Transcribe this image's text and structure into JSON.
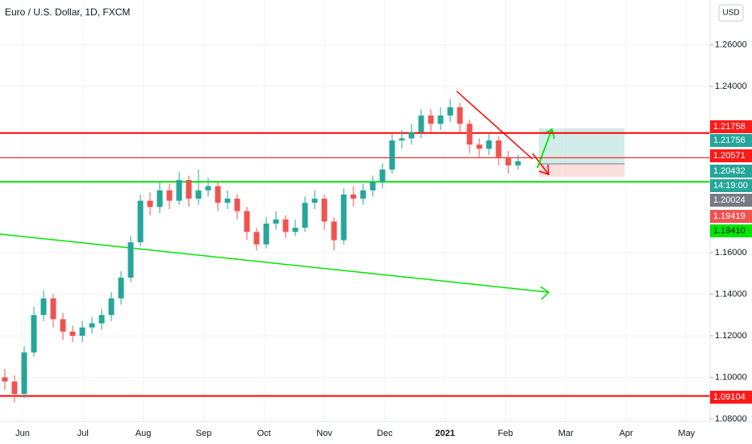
{
  "chart_data": {
    "type": "candlestick",
    "title": "Euro / U.S. Dollar, 1D, FXCM",
    "currency": "USD",
    "up_color": "#26a69a",
    "down_color": "#ef5350",
    "ylim": [
      1.0788,
      1.2816
    ],
    "yticks": [
      {
        "value": 1.26,
        "label": "1.26000"
      },
      {
        "value": 1.24,
        "label": "1.24000"
      },
      {
        "value": 1.16,
        "label": "1.16000"
      },
      {
        "value": 1.14,
        "label": "1.14000"
      },
      {
        "value": 1.12,
        "label": "1.12000"
      },
      {
        "value": 1.1,
        "label": "1.10000"
      },
      {
        "value": 1.08,
        "label": "1.08000"
      }
    ],
    "months": [
      "Jun",
      "Jul",
      "Aug",
      "Sep",
      "Oct",
      "Nov",
      "Dec",
      "2021",
      "Feb",
      "Mar",
      "Apr",
      "May"
    ],
    "candles": [
      [
        1.1,
        1.104,
        1.094,
        1.098
      ],
      [
        1.098,
        1.101,
        1.088,
        1.092
      ],
      [
        1.092,
        1.115,
        1.09,
        1.112
      ],
      [
        1.112,
        1.134,
        1.11,
        1.13
      ],
      [
        1.13,
        1.142,
        1.127,
        1.138
      ],
      [
        1.138,
        1.14,
        1.124,
        1.128
      ],
      [
        1.128,
        1.131,
        1.118,
        1.122
      ],
      [
        1.122,
        1.125,
        1.117,
        1.12
      ],
      [
        1.12,
        1.127,
        1.117,
        1.124
      ],
      [
        1.124,
        1.129,
        1.121,
        1.126
      ],
      [
        1.126,
        1.133,
        1.123,
        1.13
      ],
      [
        1.13,
        1.141,
        1.127,
        1.138
      ],
      [
        1.138,
        1.151,
        1.135,
        1.148
      ],
      [
        1.148,
        1.168,
        1.146,
        1.165
      ],
      [
        1.165,
        1.188,
        1.163,
        1.185
      ],
      [
        1.185,
        1.189,
        1.178,
        1.182
      ],
      [
        1.182,
        1.194,
        1.179,
        1.19
      ],
      [
        1.19,
        1.193,
        1.181,
        1.185
      ],
      [
        1.185,
        1.199,
        1.183,
        1.195
      ],
      [
        1.195,
        1.197,
        1.182,
        1.186
      ],
      [
        1.186,
        1.2,
        1.183,
        1.19
      ],
      [
        1.19,
        1.196,
        1.187,
        1.192
      ],
      [
        1.192,
        1.194,
        1.18,
        1.184
      ],
      [
        1.184,
        1.19,
        1.181,
        1.186
      ],
      [
        1.186,
        1.188,
        1.176,
        1.18
      ],
      [
        1.18,
        1.182,
        1.166,
        1.17
      ],
      [
        1.17,
        1.172,
        1.161,
        1.164
      ],
      [
        1.164,
        1.177,
        1.162,
        1.174
      ],
      [
        1.174,
        1.18,
        1.171,
        1.176
      ],
      [
        1.176,
        1.178,
        1.167,
        1.17
      ],
      [
        1.17,
        1.176,
        1.168,
        1.172
      ],
      [
        1.172,
        1.187,
        1.17,
        1.184
      ],
      [
        1.184,
        1.19,
        1.181,
        1.186
      ],
      [
        1.186,
        1.188,
        1.171,
        1.175
      ],
      [
        1.175,
        1.177,
        1.161,
        1.166
      ],
      [
        1.166,
        1.191,
        1.164,
        1.188
      ],
      [
        1.188,
        1.192,
        1.182,
        1.186
      ],
      [
        1.186,
        1.193,
        1.183,
        1.19
      ],
      [
        1.19,
        1.197,
        1.187,
        1.194
      ],
      [
        1.194,
        1.203,
        1.191,
        1.2
      ],
      [
        1.2,
        1.217,
        1.198,
        1.214
      ],
      [
        1.214,
        1.219,
        1.21,
        1.215
      ],
      [
        1.215,
        1.222,
        1.212,
        1.218
      ],
      [
        1.218,
        1.229,
        1.215,
        1.226
      ],
      [
        1.226,
        1.229,
        1.218,
        1.222
      ],
      [
        1.222,
        1.23,
        1.219,
        1.226
      ],
      [
        1.226,
        1.234,
        1.223,
        1.23
      ],
      [
        1.23,
        1.232,
        1.218,
        1.222
      ],
      [
        1.222,
        1.224,
        1.208,
        1.212
      ],
      [
        1.212,
        1.215,
        1.206,
        1.21
      ],
      [
        1.21,
        1.217,
        1.207,
        1.214
      ],
      [
        1.214,
        1.216,
        1.202,
        1.206
      ],
      [
        1.206,
        1.209,
        1.198,
        1.202
      ],
      [
        1.202,
        1.207,
        1.2,
        1.204
      ]
    ],
    "levels": [
      {
        "value": 1.21758,
        "color": "#ff0000"
      },
      {
        "value": 1.20571,
        "color": "#ff0000"
      },
      {
        "value": 1.1941,
        "color": "#00e600"
      },
      {
        "value": 1.09104,
        "color": "#ff0000"
      }
    ],
    "price_labels": [
      {
        "label": "1.21758",
        "color": "#ff1a1a"
      },
      {
        "label": "1.21756",
        "color": "#26a69a"
      },
      {
        "label": "1.20571",
        "color": "#ff1a1a"
      },
      {
        "label": "1.20432",
        "color": "#26a69a"
      },
      {
        "label": "14:19:00",
        "color": "#26a69a"
      },
      {
        "label": "1.20024",
        "color": "#787b86"
      },
      {
        "label": "1.19419",
        "color": "#ef5350"
      },
      {
        "label": "1.19410",
        "color": "#00e600"
      },
      {
        "label": "1.09104",
        "color": "#ff1a1a"
      }
    ]
  }
}
